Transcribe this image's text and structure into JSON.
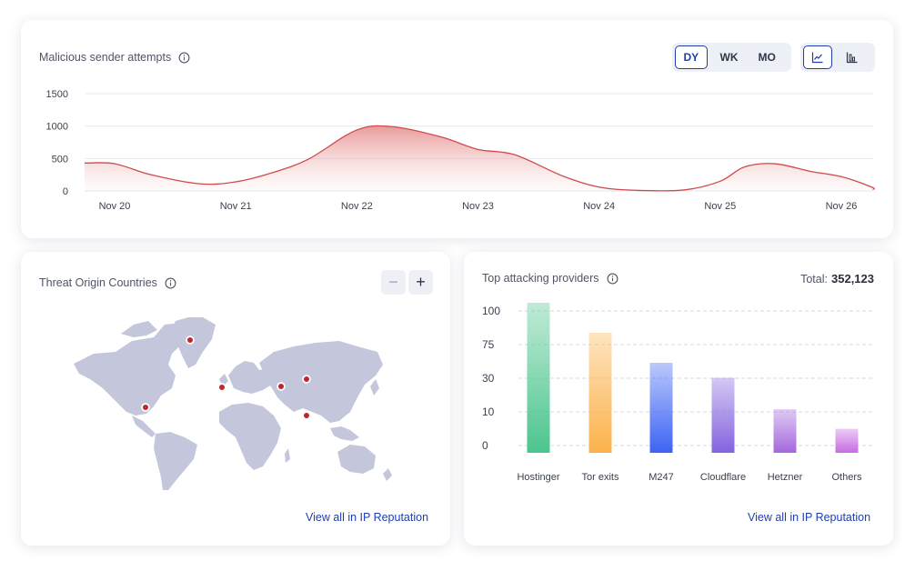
{
  "top_card": {
    "title": "Malicious sender attempts",
    "period_options": [
      "DY",
      "WK",
      "MO"
    ],
    "period_selected": "DY",
    "chart_type_options": [
      "line-chart-icon",
      "bar-chart-icon"
    ],
    "chart_type_selected": "line-chart-icon"
  },
  "map_card": {
    "title": "Threat Origin Countries",
    "zoom_out_label": "−",
    "zoom_in_label": "+",
    "link_label": "View all in IP Reputation",
    "marker_color": "#c0272d"
  },
  "bar_card": {
    "title": "Top attacking providers",
    "total_label": "Total:",
    "total_value": "352,123",
    "link_label": "View all in IP Reputation"
  },
  "chart_data": [
    {
      "type": "area",
      "title": "Malicious sender attempts",
      "categories": [
        "Nov 20",
        "Nov 21",
        "Nov 22",
        "Nov 23",
        "Nov 24",
        "Nov 25",
        "Nov 26"
      ],
      "y_ticks": [
        "1500",
        "1000",
        "500",
        "0"
      ],
      "ylim": [
        0,
        1500
      ],
      "xlim": [
        0,
        6.5
      ],
      "series": [
        {
          "x": [
            -0.25,
            0.0,
            0.3,
            0.7,
            1.0,
            1.3,
            1.6,
            2.0,
            2.3,
            2.7,
            3.0,
            3.3,
            3.7,
            4.0,
            4.3,
            4.7,
            5.0,
            5.2,
            5.45,
            5.75,
            6.0,
            6.25,
            6.5
          ],
          "y": [
            430,
            420,
            250,
            110,
            140,
            280,
            490,
            940,
            990,
            830,
            640,
            560,
            230,
            60,
            10,
            15,
            150,
            370,
            420,
            300,
            220,
            60,
            20
          ]
        }
      ],
      "colors": {
        "line": "#cf4b4b",
        "fill": "#e68a8a"
      },
      "grid": true
    },
    {
      "type": "bar",
      "title": "Top attacking providers",
      "categories": [
        "Hostinger",
        "Tor exits",
        "M247",
        "Cloudflare",
        "Hetzner",
        "Others"
      ],
      "y_ticks": [
        "100",
        "75",
        "30",
        "10",
        "0"
      ],
      "values": [
        100,
        80,
        60,
        50,
        29,
        16
      ],
      "ylim": [
        0,
        100
      ],
      "colors": [
        "#4cc58e",
        "#fbb24a",
        "#3d63f4",
        "#8463df",
        "#a468dd",
        "#c66ce2"
      ],
      "grid": true
    }
  ]
}
